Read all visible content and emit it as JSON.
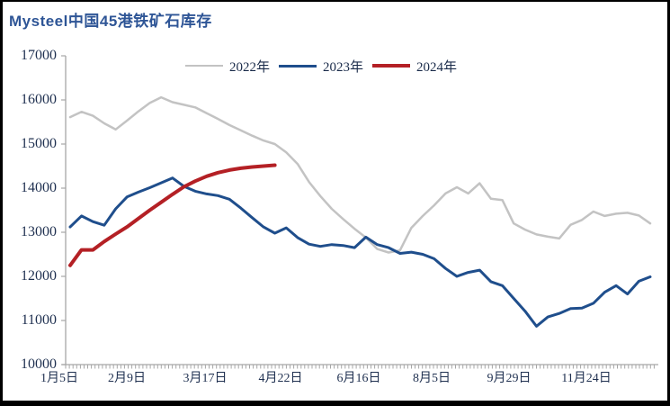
{
  "window": {
    "title": "Mysteel中国45港铁矿石库存"
  },
  "chart_data": {
    "type": "line",
    "title": "Mysteel中国45港铁矿石库存",
    "ylabel": "",
    "xlabel": "",
    "ylim": [
      10000,
      17000
    ],
    "grid": false,
    "legend_position": "top-center",
    "y_ticks": [
      "17000",
      "16000",
      "15000",
      "14000",
      "13000",
      "12000",
      "11000",
      "10000"
    ],
    "x_ticks": [
      "1月5日",
      "2月9日",
      "3月17日",
      "4月22日",
      "6月16日",
      "8月5日",
      "9月29日",
      "11月24日"
    ],
    "axis_color": "#a6a6a6",
    "label_color": "#1f3050",
    "series": [
      {
        "name": "2022年",
        "color": "#c3c3c3",
        "width": 2.5,
        "values": [
          15610,
          15730,
          15640,
          15470,
          15330,
          15530,
          15740,
          15930,
          16060,
          15950,
          15890,
          15830,
          15700,
          15570,
          15430,
          15310,
          15190,
          15080,
          15000,
          14810,
          14550,
          14140,
          13820,
          13530,
          13300,
          13080,
          12880,
          12620,
          12540,
          12590,
          13100,
          13370,
          13610,
          13880,
          14020,
          13880,
          14110,
          13760,
          13730,
          13200,
          13060,
          12950,
          12900,
          12860,
          13170,
          13280,
          13470,
          13370,
          13420,
          13440,
          13380,
          13200
        ]
      },
      {
        "name": "2023年",
        "color": "#1f4e8c",
        "width": 3,
        "values": [
          13120,
          13370,
          13240,
          13160,
          13530,
          13800,
          13910,
          14010,
          14120,
          14230,
          14040,
          13930,
          13870,
          13830,
          13750,
          13550,
          13330,
          13120,
          12980,
          13100,
          12880,
          12730,
          12680,
          12720,
          12700,
          12650,
          12890,
          12720,
          12650,
          12520,
          12550,
          12500,
          12400,
          12180,
          12000,
          12090,
          12140,
          11880,
          11790,
          11500,
          11210,
          10870,
          11080,
          11160,
          11270,
          11280,
          11390,
          11640,
          11790,
          11600,
          11890,
          11990
        ]
      },
      {
        "name": "2024年",
        "color": "#b42025",
        "width": 4,
        "values": [
          12250,
          12600,
          12600,
          12790,
          12960,
          13120,
          13310,
          13500,
          13680,
          13860,
          14030,
          14160,
          14270,
          14350,
          14410,
          14450,
          14480,
          14500,
          14520
        ]
      }
    ]
  }
}
